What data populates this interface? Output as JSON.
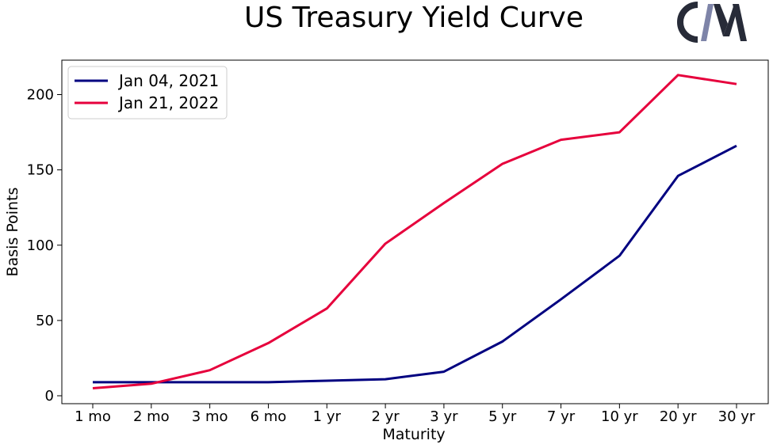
{
  "chart_data": {
    "type": "line",
    "title": "US Treasury Yield Curve",
    "xlabel": "Maturity",
    "ylabel": "Basis Points",
    "categories": [
      "1 mo",
      "2 mo",
      "3 mo",
      "6 mo",
      "1 yr",
      "2 yr",
      "3 yr",
      "5 yr",
      "7 yr",
      "10 yr",
      "20 yr",
      "30 yr"
    ],
    "ylim": [
      -5,
      225
    ],
    "yticks": [
      0,
      50,
      100,
      150,
      200
    ],
    "grid": false,
    "legend_position": "top-left",
    "series": [
      {
        "name": "Jan 04, 2021",
        "color": "#000080",
        "values": [
          9,
          9,
          9,
          9,
          10,
          11,
          16,
          36,
          64,
          93,
          146,
          166
        ]
      },
      {
        "name": "Jan 21, 2022",
        "color": "#e6003c",
        "values": [
          5,
          8,
          17,
          35,
          58,
          101,
          128,
          154,
          170,
          175,
          213,
          207
        ]
      }
    ]
  },
  "logo": {
    "alt": "CM",
    "dark_color": "#272b38",
    "light_color": "#7e84a8"
  }
}
